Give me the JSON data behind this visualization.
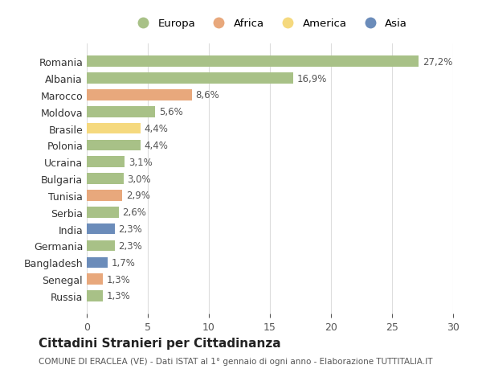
{
  "countries": [
    "Romania",
    "Albania",
    "Marocco",
    "Moldova",
    "Brasile",
    "Polonia",
    "Ucraina",
    "Bulgaria",
    "Tunisia",
    "Serbia",
    "India",
    "Germania",
    "Bangladesh",
    "Senegal",
    "Russia"
  ],
  "values": [
    27.2,
    16.9,
    8.6,
    5.6,
    4.4,
    4.4,
    3.1,
    3.0,
    2.9,
    2.6,
    2.3,
    2.3,
    1.7,
    1.3,
    1.3
  ],
  "labels": [
    "27,2%",
    "16,9%",
    "8,6%",
    "5,6%",
    "4,4%",
    "4,4%",
    "3,1%",
    "3,0%",
    "2,9%",
    "2,6%",
    "2,3%",
    "2,3%",
    "1,7%",
    "1,3%",
    "1,3%"
  ],
  "continents": [
    "Europa",
    "Europa",
    "Africa",
    "Europa",
    "America",
    "Europa",
    "Europa",
    "Europa",
    "Africa",
    "Europa",
    "Asia",
    "Europa",
    "Asia",
    "Africa",
    "Europa"
  ],
  "continent_colors": {
    "Europa": "#a8c187",
    "Africa": "#e8a87c",
    "America": "#f5d97e",
    "Asia": "#6b8cba"
  },
  "legend_order": [
    "Europa",
    "Africa",
    "America",
    "Asia"
  ],
  "title": "Cittadini Stranieri per Cittadinanza",
  "subtitle": "COMUNE DI ERACLEA (VE) - Dati ISTAT al 1° gennaio di ogni anno - Elaborazione TUTTITALIA.IT",
  "xlim": [
    0,
    30
  ],
  "xticks": [
    0,
    5,
    10,
    15,
    20,
    25,
    30
  ],
  "background_color": "#ffffff",
  "grid_color": "#dddddd"
}
